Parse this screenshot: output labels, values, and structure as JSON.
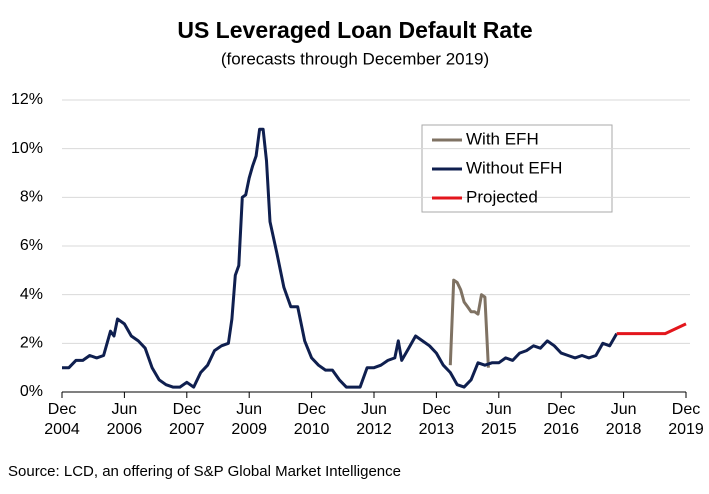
{
  "chart_data": {
    "type": "line",
    "title": "US Leveraged Loan Default Rate",
    "subtitle": "(forecasts through December 2019)",
    "source": "Source: LCD, an offering of S&P Global Market Intelligence",
    "xlim": [
      "2004-12",
      "2019-12"
    ],
    "xticks": [
      {
        "value": "2004-12",
        "label": "Dec 2004"
      },
      {
        "value": "2006-06",
        "label": "Jun 2006"
      },
      {
        "value": "2007-12",
        "label": "Dec 2007"
      },
      {
        "value": "2009-06",
        "label": "Jun 2009"
      },
      {
        "value": "2010-12",
        "label": "Dec 2010"
      },
      {
        "value": "2012-06",
        "label": "Jun 2012"
      },
      {
        "value": "2013-12",
        "label": "Dec 2013"
      },
      {
        "value": "2015-06",
        "label": "Jun 2015"
      },
      {
        "value": "2016-12",
        "label": "Dec 2016"
      },
      {
        "value": "2018-06",
        "label": "Jun 2018"
      },
      {
        "value": "2019-12",
        "label": "Dec 2019"
      }
    ],
    "ylim": [
      0,
      12
    ],
    "yticks": [
      {
        "value": 0,
        "label": "0%"
      },
      {
        "value": 2,
        "label": "2%"
      },
      {
        "value": 4,
        "label": "4%"
      },
      {
        "value": 6,
        "label": "6%"
      },
      {
        "value": 8,
        "label": "8%"
      },
      {
        "value": 10,
        "label": "10%"
      },
      {
        "value": 12,
        "label": "12%"
      }
    ],
    "grid": true,
    "legend": "upper right",
    "series": [
      {
        "name": "With EFH",
        "color": "#7f7263",
        "x": [
          "2014-04",
          "2014-05",
          "2014-06",
          "2014-07",
          "2014-08",
          "2014-09",
          "2014-10",
          "2014-11",
          "2014-12",
          "2015-01",
          "2015-02",
          "2015-03"
        ],
        "values": [
          1.1,
          4.6,
          4.5,
          4.2,
          3.7,
          3.5,
          3.3,
          3.3,
          3.2,
          4.0,
          3.9,
          1.0
        ]
      },
      {
        "name": "Without EFH",
        "color": "#0f1f4f",
        "x": [
          "2004-12",
          "2005-02",
          "2005-04",
          "2005-06",
          "2005-08",
          "2005-10",
          "2005-12",
          "2006-02",
          "2006-03",
          "2006-04",
          "2006-06",
          "2006-08",
          "2006-10",
          "2006-12",
          "2007-02",
          "2007-04",
          "2007-06",
          "2007-08",
          "2007-10",
          "2007-12",
          "2008-02",
          "2008-04",
          "2008-06",
          "2008-08",
          "2008-10",
          "2008-12",
          "2009-01",
          "2009-02",
          "2009-03",
          "2009-04",
          "2009-05",
          "2009-06",
          "2009-07",
          "2009-08",
          "2009-09",
          "2009-10",
          "2009-11",
          "2009-12",
          "2010-02",
          "2010-04",
          "2010-06",
          "2010-08",
          "2010-10",
          "2010-12",
          "2011-02",
          "2011-04",
          "2011-06",
          "2011-08",
          "2011-10",
          "2011-12",
          "2012-02",
          "2012-04",
          "2012-06",
          "2012-08",
          "2012-10",
          "2012-12",
          "2013-01",
          "2013-02",
          "2013-04",
          "2013-06",
          "2013-08",
          "2013-10",
          "2013-12",
          "2014-02",
          "2014-04",
          "2014-06",
          "2014-08",
          "2014-10",
          "2014-12",
          "2015-02",
          "2015-04",
          "2015-06",
          "2015-08",
          "2015-10",
          "2015-12",
          "2016-02",
          "2016-04",
          "2016-06",
          "2016-08",
          "2016-10",
          "2016-12",
          "2017-02",
          "2017-04",
          "2017-06",
          "2017-08",
          "2017-10",
          "2017-12",
          "2018-02",
          "2018-04"
        ],
        "values": [
          1.0,
          1.0,
          1.3,
          1.3,
          1.5,
          1.4,
          1.5,
          2.5,
          2.3,
          3.0,
          2.8,
          2.3,
          2.1,
          1.8,
          1.0,
          0.5,
          0.3,
          0.2,
          0.2,
          0.4,
          0.2,
          0.8,
          1.1,
          1.7,
          1.9,
          2.0,
          3.0,
          4.8,
          5.2,
          8.0,
          8.1,
          8.8,
          9.3,
          9.7,
          10.8,
          10.8,
          9.5,
          7.0,
          5.7,
          4.3,
          3.5,
          3.5,
          2.1,
          1.4,
          1.1,
          0.9,
          0.9,
          0.5,
          0.2,
          0.2,
          0.2,
          1.0,
          1.0,
          1.1,
          1.3,
          1.4,
          2.1,
          1.3,
          1.8,
          2.3,
          2.1,
          1.9,
          1.6,
          1.1,
          0.8,
          0.3,
          0.2,
          0.5,
          1.2,
          1.1,
          1.2,
          1.2,
          1.4,
          1.3,
          1.6,
          1.7,
          1.9,
          1.8,
          2.1,
          1.9,
          1.6,
          1.5,
          1.4,
          1.5,
          1.4,
          1.5,
          2.0,
          1.9,
          2.4
        ]
      },
      {
        "name": "Projected",
        "color": "#e3161c",
        "x": [
          "2018-04",
          "2018-12",
          "2019-06",
          "2019-12"
        ],
        "values": [
          2.4,
          2.4,
          2.4,
          2.8
        ]
      }
    ]
  }
}
